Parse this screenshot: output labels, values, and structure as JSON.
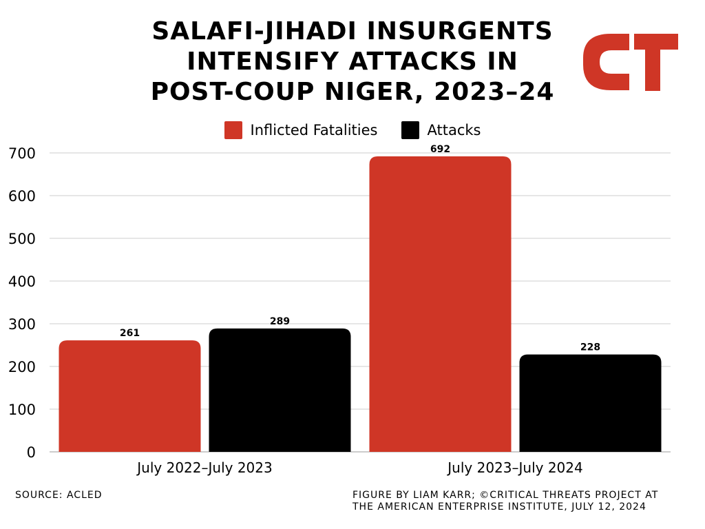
{
  "title_lines": [
    "SALAFI-JIHADI INSURGENTS",
    "INTENSIFY ATTACKS IN",
    "POST-COUP NIGER, 2023–24"
  ],
  "logo": {
    "name": "ct-logo",
    "color": "#cf3626"
  },
  "colors": {
    "fatalities": "#cf3626",
    "attacks": "#000000",
    "grid": "#cccccc"
  },
  "chart_data": {
    "type": "bar",
    "title": "SALAFI-JIHADI INSURGENTS INTENSIFY ATTACKS IN POST-COUP NIGER, 2023–24",
    "categories": [
      "July 2022–July 2023",
      "July 2023–July 2024"
    ],
    "series": [
      {
        "name": "Inflicted Fatalities",
        "values": [
          261,
          692
        ],
        "color": "#cf3626"
      },
      {
        "name": "Attacks",
        "values": [
          289,
          228
        ],
        "color": "#000000"
      }
    ],
    "xlabel": "",
    "ylabel": "",
    "ylim": [
      0,
      700
    ],
    "yticks": [
      0,
      100,
      200,
      300,
      400,
      500,
      600,
      700
    ],
    "grid": true,
    "legend": "top-center",
    "data_labels": true
  },
  "footer": {
    "source": "SOURCE: ACLED",
    "credit_lines": [
      "FIGURE BY LIAM KARR; ©CRITICAL THREATS PROJECT AT",
      "THE AMERICAN ENTERPRISE INSTITUTE, JULY 12, 2024"
    ]
  }
}
